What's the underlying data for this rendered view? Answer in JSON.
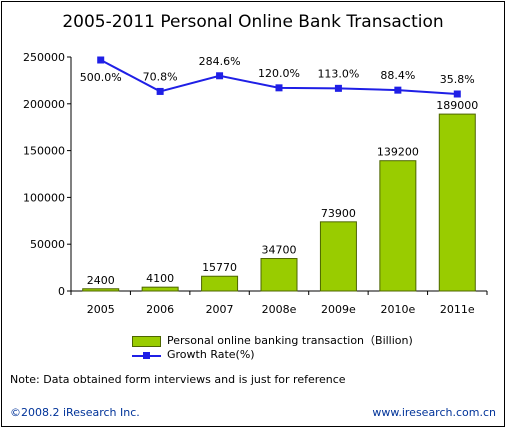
{
  "title": "2005-2011 Personal Online Bank Transaction",
  "chart_data": {
    "type": "bar",
    "categories": [
      "2005",
      "2006",
      "2007",
      "2008e",
      "2009e",
      "2010e",
      "2011e"
    ],
    "series": [
      {
        "name": "Personal online banking transaction（Billion)",
        "type": "bar",
        "values": [
          2400,
          4100,
          15770,
          34700,
          73900,
          139200,
          189000
        ],
        "labels": [
          "2400",
          "4100",
          "15770",
          "34700",
          "73900",
          "139200",
          "189000"
        ],
        "color": "#99cc00"
      },
      {
        "name": "Growth Rate(%)",
        "type": "line",
        "values": [
          500.0,
          70.8,
          284.6,
          120.0,
          113.0,
          88.4,
          35.8
        ],
        "labels": [
          "500.0%",
          "70.8%",
          "284.6%",
          "120.0%",
          "113.0%",
          "88.4%",
          "35.8%"
        ],
        "color": "#1f1fe6"
      }
    ],
    "yticks": [
      "0",
      "50000",
      "100000",
      "150000",
      "200000",
      "250000"
    ],
    "ylim": [
      0,
      250000
    ],
    "grid": false,
    "legend_position": "bottom"
  },
  "note": "Note: Data obtained form interviews and is  just for reference",
  "copyright": "©2008.2 iResearch Inc.",
  "website": "www.iresearch.com.cn"
}
